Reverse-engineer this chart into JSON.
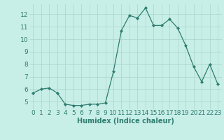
{
  "x": [
    0,
    1,
    2,
    3,
    4,
    5,
    6,
    7,
    8,
    9,
    10,
    11,
    12,
    13,
    14,
    15,
    16,
    17,
    18,
    19,
    20,
    21,
    22,
    23
  ],
  "y": [
    5.7,
    6.0,
    6.1,
    5.7,
    4.8,
    4.7,
    4.7,
    4.8,
    4.8,
    4.9,
    7.4,
    10.7,
    11.9,
    11.7,
    12.5,
    11.1,
    11.1,
    11.6,
    10.9,
    9.5,
    7.8,
    6.6,
    8.0,
    6.4
  ],
  "line_color": "#2e7d6e",
  "marker": "D",
  "marker_size": 2.0,
  "bg_color": "#c8eee8",
  "grid_color": "#aed8d0",
  "xlabel": "Humidex (Indice chaleur)",
  "ylim": [
    4.4,
    12.8
  ],
  "xlim": [
    -0.5,
    23.5
  ],
  "yticks": [
    5,
    6,
    7,
    8,
    9,
    10,
    11,
    12
  ],
  "xticks": [
    0,
    1,
    2,
    3,
    4,
    5,
    6,
    7,
    8,
    9,
    10,
    11,
    12,
    13,
    14,
    15,
    16,
    17,
    18,
    19,
    20,
    21,
    22,
    23
  ],
  "xlabel_fontsize": 7.0,
  "tick_fontsize": 6.5,
  "linewidth": 0.9
}
